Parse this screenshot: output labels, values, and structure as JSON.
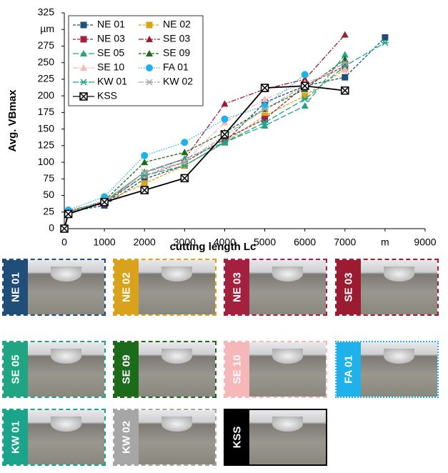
{
  "chart_data": {
    "type": "line",
    "ylabel": "Avg. VBmax",
    "xlabel": "cutting length Lc",
    "x": [
      0,
      100,
      1000,
      2000,
      3000,
      4000,
      5000,
      6000,
      7000,
      8000
    ],
    "xlim": [
      0,
      9000
    ],
    "xticks": [
      0,
      1000,
      2000,
      3000,
      4000,
      5000,
      6000,
      7000,
      {
        "value": 8000,
        "label": "m"
      },
      9000
    ],
    "ylim": [
      0,
      325
    ],
    "yticks": [
      0,
      25,
      50,
      75,
      100,
      125,
      150,
      175,
      200,
      225,
      250,
      275,
      {
        "value": 300,
        "label": "µm"
      },
      325
    ],
    "legend": "upper-left",
    "series": [
      {
        "name": "NE 01",
        "color": "#1f4e79",
        "marker": "square",
        "dash": "dashed",
        "values": [
          0,
          25,
          35,
          75,
          95,
          130,
          190,
          215,
          228,
          288
        ]
      },
      {
        "name": "NE 02",
        "color": "#d9a21b",
        "marker": "square",
        "dash": "dashed",
        "values": [
          0,
          25,
          40,
          68,
          95,
          130,
          170,
          200,
          240,
          null
        ]
      },
      {
        "name": "NE 03",
        "color": "#a3203f",
        "marker": "square",
        "dash": "dashed",
        "values": [
          0,
          25,
          38,
          80,
          100,
          135,
          165,
          215,
          245,
          null
        ]
      },
      {
        "name": "SE 03",
        "color": "#9b1c31",
        "marker": "triangle",
        "dash": "dashdot",
        "values": [
          0,
          27,
          40,
          85,
          105,
          188,
          210,
          225,
          292,
          null
        ]
      },
      {
        "name": "SE 05",
        "color": "#20a582",
        "marker": "triangle",
        "dash": "longdash",
        "values": [
          0,
          25,
          40,
          85,
          105,
          130,
          155,
          185,
          262,
          null
        ]
      },
      {
        "name": "SE 09",
        "color": "#1b6b1b",
        "marker": "triangle",
        "dash": "dashed",
        "values": [
          0,
          25,
          42,
          100,
          115,
          145,
          180,
          210,
          255,
          null
        ]
      },
      {
        "name": "SE 10",
        "color": "#f5b7b7",
        "marker": "triangle",
        "dash": "dashdot",
        "values": [
          0,
          26,
          40,
          80,
          100,
          160,
          195,
          220,
          240,
          null
        ]
      },
      {
        "name": "FA 01",
        "color": "#1fb2ea",
        "marker": "circle",
        "dash": "dotted",
        "values": [
          0,
          28,
          48,
          110,
          130,
          165,
          185,
          232,
          null,
          null
        ]
      },
      {
        "name": "KW 01",
        "color": "#1aa58a",
        "marker": "star",
        "dash": "longdash",
        "values": [
          0,
          25,
          40,
          80,
          95,
          130,
          160,
          195,
          245,
          280
        ]
      },
      {
        "name": "KW 02",
        "color": "#a6a6a6",
        "marker": "star",
        "dash": "dashdot",
        "values": [
          0,
          25,
          42,
          85,
          100,
          140,
          180,
          215,
          250,
          null
        ]
      },
      {
        "name": "KSS",
        "color": "#000000",
        "marker": "xbox",
        "dash": "solid",
        "values": [
          0,
          22,
          40,
          58,
          76,
          142,
          212,
          215,
          208,
          null
        ]
      }
    ]
  },
  "tiles": [
    {
      "label": "NE 01",
      "color": "#1f4e79",
      "border": "dashed"
    },
    {
      "label": "NE 02",
      "color": "#d9a21b",
      "border": "dashed"
    },
    {
      "label": "NE 03",
      "color": "#a3203f",
      "border": "dashed"
    },
    {
      "label": "SE 03",
      "color": "#9b1c31",
      "border": "dashed"
    },
    {
      "label": "SE 05",
      "color": "#20a582",
      "border": "dashed"
    },
    {
      "label": "SE 09",
      "color": "#1b6b1b",
      "border": "dashed"
    },
    {
      "label": "SE 10",
      "color": "#f5b7b7",
      "border": "dashed"
    },
    {
      "label": "FA 01",
      "color": "#1fb2ea",
      "border": "dotted"
    },
    {
      "label": "KW 01",
      "color": "#1aa58a",
      "border": "dashed"
    },
    {
      "label": "KW 02",
      "color": "#a6a6a6",
      "border": "dashed"
    },
    {
      "label": "KSS",
      "color": "#000000",
      "border": "solid"
    }
  ]
}
